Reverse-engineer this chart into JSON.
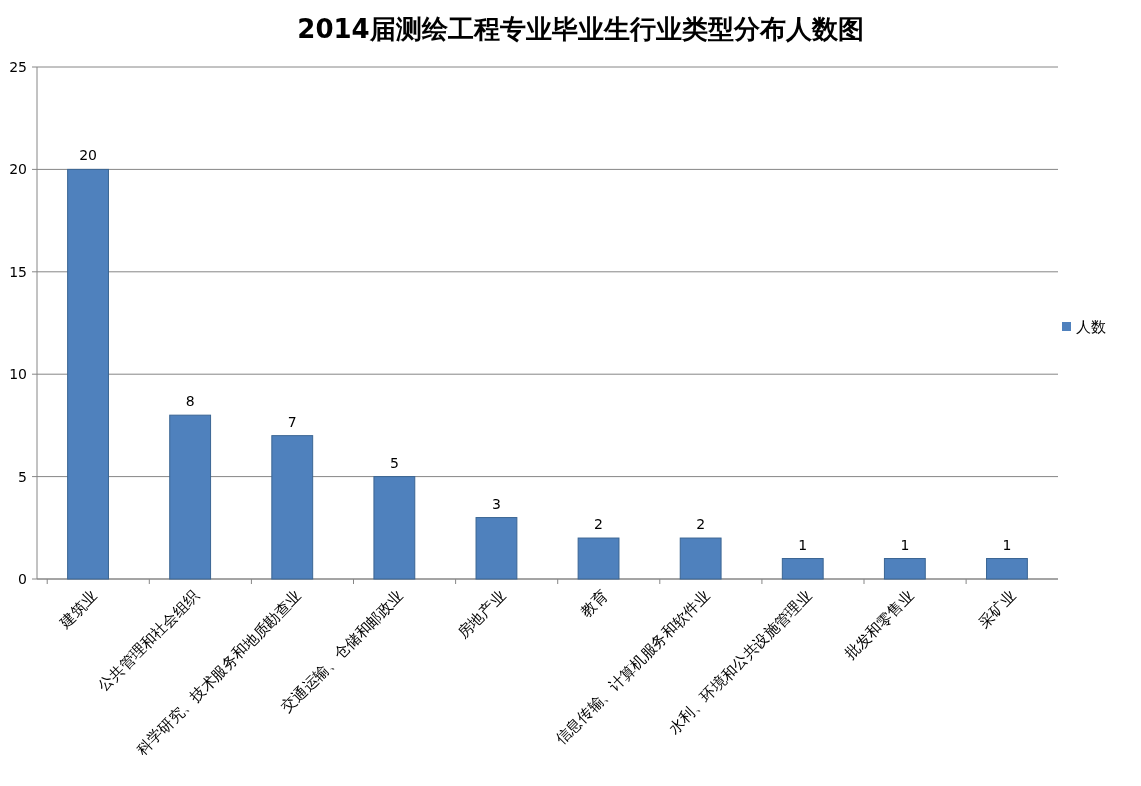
{
  "chart_data": {
    "type": "bar",
    "title": "2014届测绘工程专业毕业生行业类型分布人数图",
    "categories": [
      "建筑业",
      "公共管理和社会组织",
      "科学研究、技术服务和地质勘查业",
      "交通运输、仓储和邮政业",
      "房地产业",
      "教育",
      "信息传输、计算机服务和软件业",
      "水利、环境和公共设施管理业",
      "批发和零售业",
      "采矿业"
    ],
    "series": [
      {
        "name": "人数",
        "color": "#4f81bd",
        "values": [
          20,
          8,
          7,
          5,
          3,
          2,
          2,
          1,
          1,
          1
        ]
      }
    ],
    "ylim": [
      0,
      25
    ],
    "yticks": [
      0,
      5,
      10,
      15,
      20,
      25
    ],
    "grid": "y",
    "legend": "right",
    "data_labels": true
  }
}
